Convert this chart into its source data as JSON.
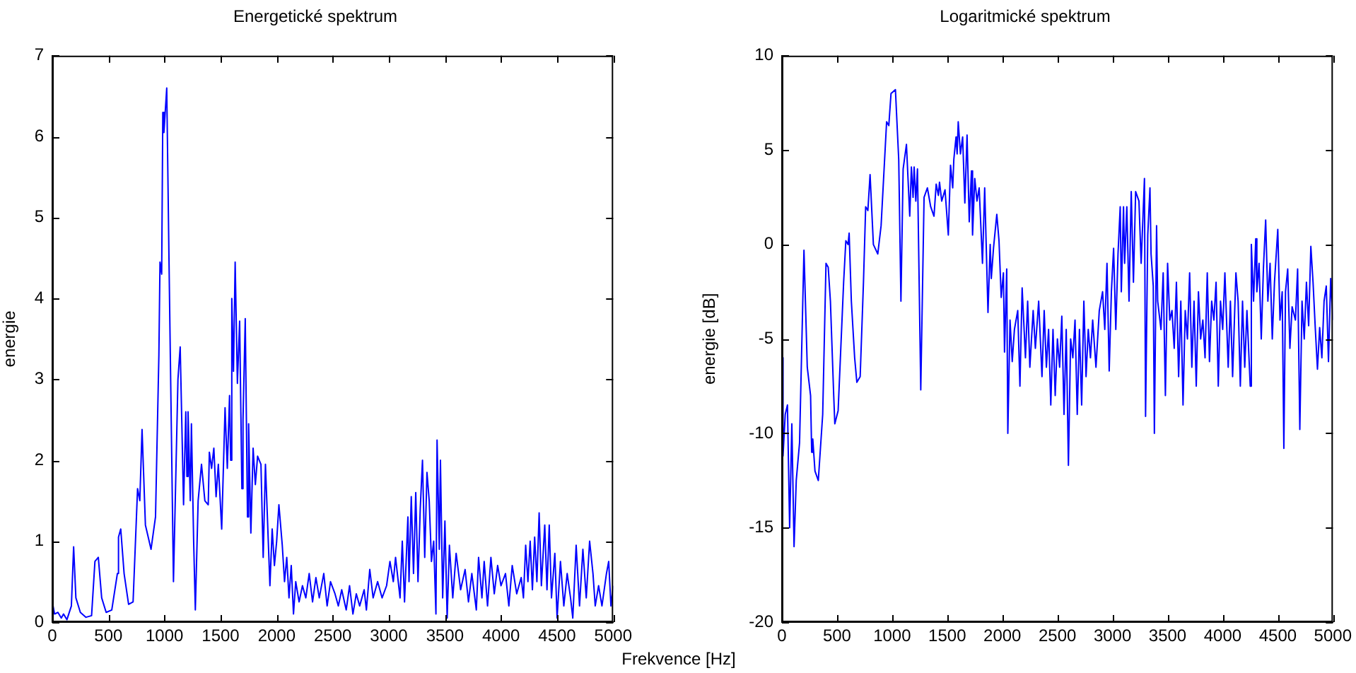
{
  "chart_data": [
    {
      "type": "line",
      "title": "Energetické spektrum",
      "ylabel": "energie",
      "xlabel": "Frekvence [Hz]",
      "xlim": [
        0,
        5000
      ],
      "xticks": [
        0,
        500,
        1000,
        1500,
        2000,
        2500,
        3000,
        3500,
        4000,
        4500,
        5000
      ],
      "ylim": [
        0,
        7
      ],
      "yticks": [
        0,
        1,
        2,
        3,
        4,
        5,
        6,
        7
      ],
      "grid": false,
      "legend": false,
      "marker": "none",
      "line_style": "solid",
      "series": [
        {
          "color": "#0000ff",
          "x": [
            0,
            20,
            50,
            80,
            100,
            130,
            170,
            190,
            210,
            250,
            300,
            350,
            380,
            410,
            440,
            480,
            530,
            580,
            590,
            610,
            640,
            680,
            720,
            760,
            780,
            800,
            830,
            880,
            920,
            950,
            960,
            975,
            985,
            995,
            1020,
            1040,
            1080,
            1120,
            1140,
            1170,
            1190,
            1200,
            1210,
            1230,
            1240,
            1260,
            1275,
            1300,
            1330,
            1360,
            1390,
            1400,
            1420,
            1440,
            1460,
            1480,
            1510,
            1540,
            1560,
            1580,
            1590,
            1600,
            1615,
            1630,
            1650,
            1670,
            1690,
            1700,
            1720,
            1740,
            1750,
            1770,
            1790,
            1810,
            1830,
            1860,
            1880,
            1900,
            1920,
            1940,
            1960,
            1980,
            2000,
            2020,
            2050,
            2070,
            2090,
            2110,
            2130,
            2150,
            2170,
            2200,
            2230,
            2260,
            2290,
            2320,
            2350,
            2380,
            2420,
            2450,
            2480,
            2520,
            2550,
            2580,
            2620,
            2650,
            2680,
            2710,
            2740,
            2780,
            2800,
            2830,
            2860,
            2900,
            2940,
            2980,
            3010,
            3040,
            3060,
            3080,
            3100,
            3120,
            3140,
            3170,
            3180,
            3200,
            3220,
            3240,
            3260,
            3280,
            3300,
            3320,
            3340,
            3360,
            3380,
            3400,
            3420,
            3430,
            3450,
            3460,
            3480,
            3500,
            3520,
            3540,
            3570,
            3600,
            3640,
            3680,
            3710,
            3740,
            3780,
            3800,
            3830,
            3850,
            3880,
            3910,
            3940,
            3970,
            4000,
            4040,
            4070,
            4100,
            4140,
            4180,
            4200,
            4220,
            4240,
            4260,
            4280,
            4300,
            4320,
            4340,
            4360,
            4390,
            4410,
            4430,
            4450,
            4480,
            4500,
            4530,
            4560,
            4590,
            4620,
            4640,
            4670,
            4700,
            4730,
            4760,
            4790,
            4820,
            4840,
            4870,
            4900,
            4940,
            4960,
            4980,
            5000
          ],
          "values": [
            0.25,
            0.1,
            0.12,
            0.05,
            0.1,
            0.03,
            0.2,
            0.93,
            0.3,
            0.12,
            0.06,
            0.08,
            0.75,
            0.8,
            0.3,
            0.12,
            0.15,
            0.6,
            1.05,
            1.15,
            0.6,
            0.22,
            0.25,
            1.65,
            1.5,
            2.38,
            1.2,
            0.9,
            1.3,
            3.3,
            4.45,
            4.3,
            6.3,
            6.05,
            6.6,
            4.5,
            0.5,
            3.0,
            3.4,
            1.45,
            2.6,
            1.8,
            2.6,
            1.5,
            2.45,
            1.0,
            0.15,
            1.5,
            1.95,
            1.5,
            1.45,
            2.1,
            1.9,
            2.15,
            1.55,
            1.95,
            1.15,
            2.65,
            1.9,
            2.8,
            2.0,
            4.0,
            3.1,
            4.45,
            2.95,
            3.72,
            1.65,
            2.5,
            3.75,
            1.3,
            2.45,
            1.1,
            2.15,
            1.7,
            2.05,
            1.95,
            0.8,
            1.95,
            1.2,
            0.45,
            1.15,
            0.7,
            1.0,
            1.45,
            0.95,
            0.5,
            0.8,
            0.3,
            0.7,
            0.1,
            0.5,
            0.25,
            0.45,
            0.3,
            0.6,
            0.25,
            0.55,
            0.3,
            0.6,
            0.2,
            0.5,
            0.35,
            0.2,
            0.4,
            0.15,
            0.45,
            0.1,
            0.35,
            0.2,
            0.4,
            0.15,
            0.65,
            0.3,
            0.5,
            0.3,
            0.45,
            0.75,
            0.5,
            0.8,
            0.55,
            0.3,
            1.0,
            0.25,
            1.3,
            0.5,
            1.55,
            0.6,
            1.6,
            0.5,
            1.4,
            2.0,
            0.8,
            1.85,
            1.5,
            0.75,
            1.0,
            0.1,
            2.25,
            0.9,
            2.0,
            0.3,
            1.25,
            0.05,
            0.95,
            0.3,
            0.85,
            0.4,
            0.65,
            0.25,
            0.6,
            0.15,
            0.8,
            0.3,
            0.75,
            0.2,
            0.8,
            0.35,
            0.7,
            0.45,
            0.6,
            0.2,
            0.7,
            0.35,
            0.55,
            0.3,
            0.95,
            0.5,
            1.0,
            0.4,
            1.05,
            0.5,
            1.35,
            0.45,
            1.2,
            0.4,
            1.2,
            0.3,
            0.85,
            0.05,
            0.75,
            0.2,
            0.6,
            0.3,
            0.05,
            0.95,
            0.2,
            0.9,
            0.3,
            1.0,
            0.6,
            0.2,
            0.45,
            0.2,
            0.6,
            0.75,
            0.2,
            0.45
          ]
        }
      ]
    },
    {
      "type": "line",
      "title": "Logaritmické spektrum",
      "ylabel": "energie [dB]",
      "xlim": [
        0,
        5000
      ],
      "xticks": [
        0,
        500,
        1000,
        1500,
        2000,
        2500,
        3000,
        3500,
        4000,
        4500,
        5000
      ],
      "ylim": [
        -20,
        10
      ],
      "yticks": [
        -20,
        -15,
        -10,
        -5,
        0,
        5,
        10
      ],
      "grid": false,
      "legend": false,
      "marker": "none",
      "line_style": "solid",
      "series": [
        {
          "color": "#0000ff",
          "x": [
            0,
            10,
            30,
            50,
            70,
            90,
            110,
            130,
            160,
            200,
            230,
            260,
            270,
            280,
            300,
            330,
            370,
            400,
            420,
            440,
            470,
            480,
            510,
            560,
            580,
            600,
            610,
            630,
            660,
            680,
            710,
            740,
            760,
            780,
            800,
            830,
            870,
            900,
            950,
            970,
            990,
            1030,
            1060,
            1080,
            1100,
            1130,
            1160,
            1175,
            1190,
            1200,
            1215,
            1230,
            1260,
            1290,
            1320,
            1350,
            1380,
            1400,
            1420,
            1430,
            1450,
            1480,
            1510,
            1530,
            1550,
            1560,
            1580,
            1590,
            1600,
            1620,
            1640,
            1660,
            1680,
            1700,
            1720,
            1730,
            1750,
            1770,
            1790,
            1820,
            1840,
            1870,
            1890,
            1900,
            1920,
            1950,
            1970,
            1990,
            2010,
            2020,
            2040,
            2050,
            2070,
            2090,
            2110,
            2140,
            2160,
            2180,
            2210,
            2230,
            2250,
            2280,
            2300,
            2330,
            2360,
            2380,
            2400,
            2420,
            2440,
            2460,
            2480,
            2500,
            2520,
            2540,
            2560,
            2580,
            2600,
            2620,
            2640,
            2660,
            2680,
            2700,
            2720,
            2740,
            2760,
            2780,
            2800,
            2820,
            2850,
            2880,
            2910,
            2930,
            2950,
            2970,
            2990,
            3010,
            3030,
            3050,
            3070,
            3080,
            3100,
            3110,
            3130,
            3150,
            3170,
            3190,
            3210,
            3240,
            3260,
            3290,
            3300,
            3320,
            3340,
            3350,
            3370,
            3380,
            3400,
            3410,
            3440,
            3460,
            3480,
            3500,
            3520,
            3540,
            3560,
            3580,
            3600,
            3620,
            3640,
            3660,
            3680,
            3700,
            3720,
            3740,
            3760,
            3780,
            3800,
            3820,
            3840,
            3860,
            3880,
            3900,
            3920,
            3940,
            3960,
            3980,
            4000,
            4020,
            4050,
            4070,
            4090,
            4120,
            4140,
            4160,
            4180,
            4200,
            4220,
            4250,
            4260,
            4280,
            4300,
            4310,
            4330,
            4350,
            4370,
            4390,
            4410,
            4430,
            4450,
            4470,
            4500,
            4520,
            4540,
            4555,
            4570,
            4590,
            4610,
            4630,
            4660,
            4680,
            4700,
            4720,
            4740,
            4760,
            4780,
            4800,
            4820,
            4840,
            4860,
            4880,
            4900,
            4920,
            4940,
            4960,
            4980,
            5000
          ],
          "values": [
            -6,
            -11.2,
            -9,
            -8.5,
            -15,
            -9.5,
            -16,
            -12.5,
            -10.5,
            -0.3,
            -6.5,
            -8,
            -11,
            -10.3,
            -12,
            -12.5,
            -9,
            -1,
            -1.2,
            -3,
            -8,
            -9.5,
            -8.8,
            -2,
            0.2,
            0,
            0.6,
            -3,
            -6,
            -7.3,
            -7,
            -2,
            2,
            1.8,
            3.7,
            0,
            -0.5,
            1,
            6.5,
            6.3,
            8,
            8.2,
            4.5,
            -3,
            4,
            5.3,
            1.5,
            4.1,
            2.5,
            4.1,
            2.3,
            4,
            -7.7,
            2.5,
            3,
            2,
            1.5,
            3.2,
            2.6,
            3.3,
            2.3,
            2.9,
            0.5,
            4.2,
            3,
            4.5,
            5.7,
            4.8,
            6.5,
            4.8,
            5.7,
            2.2,
            5.8,
            1.2,
            3.9,
            0.5,
            3.5,
            2.3,
            3,
            -1,
            3,
            -3.6,
            0,
            -1.8,
            -0.2,
            1.6,
            0.2,
            -2.8,
            -1.5,
            -5.7,
            -1.3,
            -10,
            -4,
            -6.2,
            -4.5,
            -3.5,
            -7.5,
            -2.3,
            -6,
            -3,
            -6.5,
            -3.5,
            -5.5,
            -3,
            -7,
            -3.5,
            -6.5,
            -4.5,
            -8.5,
            -4.5,
            -8,
            -5,
            -6.5,
            -3.8,
            -9,
            -4.5,
            -11.7,
            -5,
            -6,
            -4,
            -9,
            -4.5,
            -8.5,
            -3,
            -7,
            -4.5,
            -6,
            -4,
            -6.5,
            -3.5,
            -2.5,
            -4.5,
            -1,
            -6.7,
            -2.5,
            -0.2,
            -4.5,
            -0.5,
            2,
            -2.5,
            2,
            -1,
            2,
            -3,
            2.8,
            -2,
            2.8,
            2.3,
            -1,
            3.5,
            -9.1,
            0.5,
            3,
            -0.5,
            -2.2,
            -10,
            1,
            -3,
            -4.5,
            -1.5,
            -8,
            -1,
            -4,
            -3.5,
            -5.5,
            -2,
            -7,
            -3,
            -8.5,
            -3.5,
            -5,
            -1.5,
            -6.5,
            -3,
            -7.5,
            -2.5,
            -5,
            -4,
            -6,
            -1.5,
            -6.2,
            -3,
            -4,
            -2,
            -7.5,
            -3,
            -4.5,
            -1.5,
            -6.5,
            -3,
            -7,
            -1.5,
            -3,
            -7.5,
            -3,
            -6.5,
            -3.5,
            -7.5,
            0,
            -3,
            0.3,
            -2.5,
            -1,
            -5,
            -1.2,
            1.3,
            -3,
            -1,
            -5,
            -2,
            0.8,
            -4,
            -2.5,
            -10.8,
            -2.5,
            -1.3,
            -5.5,
            -3.3,
            -4,
            -1.3,
            -9.8,
            -3,
            -5,
            -2,
            -4.3,
            -0.1,
            -2,
            -4.4,
            -6.6,
            -4.4,
            -6,
            -3,
            -2.2,
            -6.2,
            -1.8,
            -4
          ]
        }
      ]
    }
  ]
}
